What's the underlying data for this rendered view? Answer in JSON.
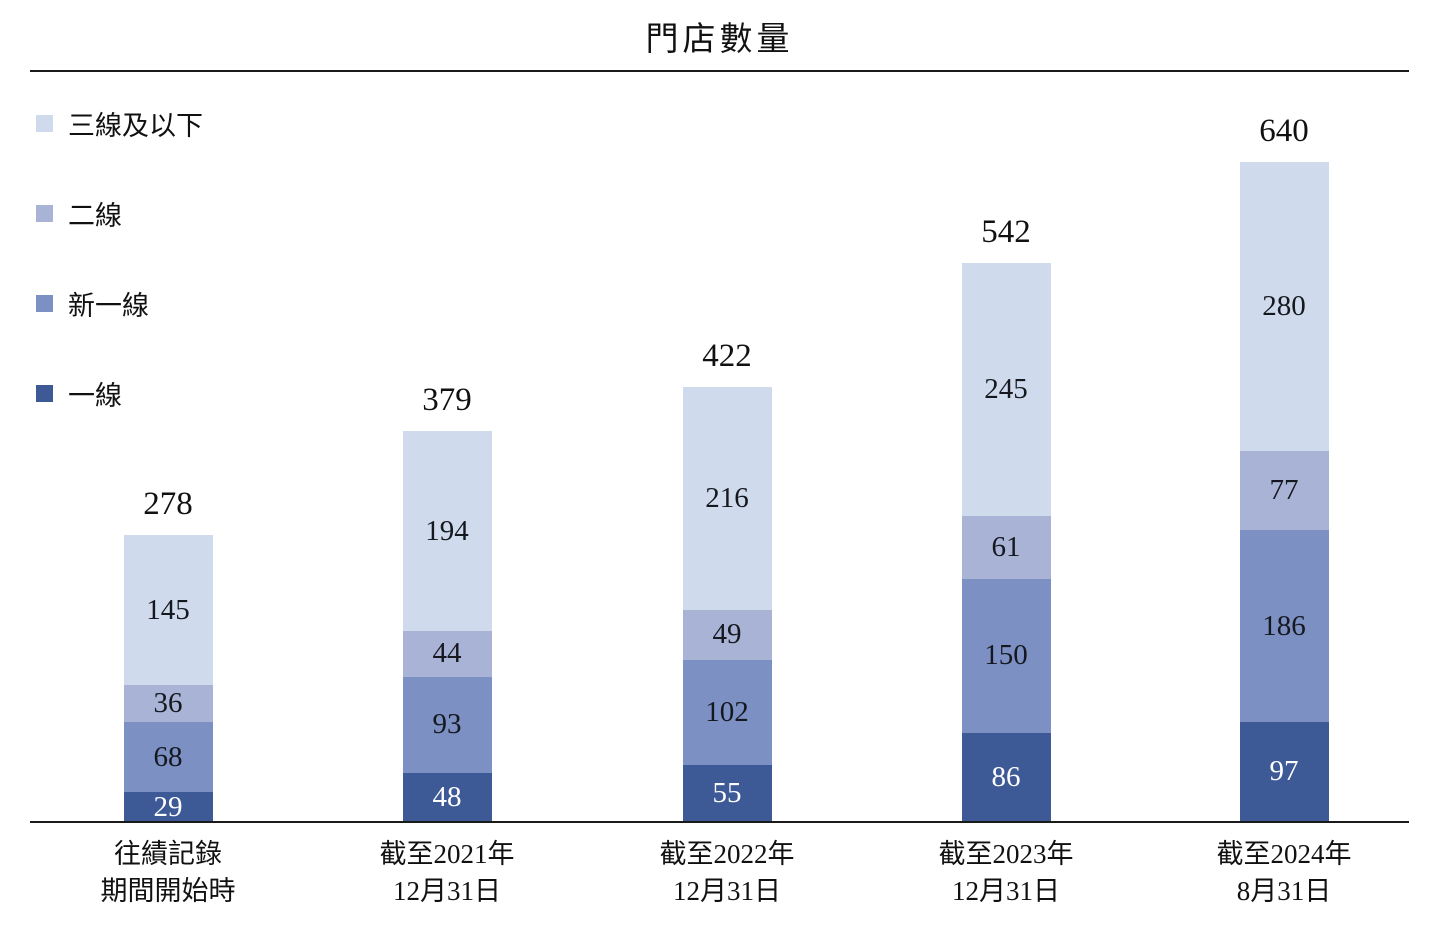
{
  "chart_data": {
    "type": "bar",
    "subtype": "stacked-vertical",
    "title": "門店數量",
    "xlabel": "",
    "ylabel": "",
    "grid": false,
    "legend_position": "top-left",
    "legend": [
      {
        "label": "三線及以下",
        "color": "#cfdbec"
      },
      {
        "label": "二線",
        "color": "#a9b3d6"
      },
      {
        "label": "新一線",
        "color": "#7c90c4"
      },
      {
        "label": "一線",
        "color": "#3d5a97"
      }
    ],
    "categories": [
      [
        "往績記錄",
        "期間開始時"
      ],
      [
        "截至2021年",
        "12月31日"
      ],
      [
        "截至2022年",
        "12月31日"
      ],
      [
        "截至2023年",
        "12月31日"
      ],
      [
        "截至2024年",
        "8月31日"
      ]
    ],
    "series": [
      {
        "name": "一線",
        "color": "#3d5a97",
        "text_color": "#ffffff",
        "values": [
          29,
          48,
          55,
          86,
          97
        ]
      },
      {
        "name": "新一線",
        "color": "#7c90c4",
        "text_color": "#15181f",
        "values": [
          68,
          93,
          102,
          150,
          186
        ]
      },
      {
        "name": "二線",
        "color": "#a9b3d6",
        "text_color": "#15181f",
        "values": [
          36,
          44,
          49,
          61,
          77
        ]
      },
      {
        "name": "三線及以下",
        "color": "#cfdbec",
        "text_color": "#15181f",
        "values": [
          145,
          194,
          216,
          245,
          280
        ]
      }
    ],
    "totals": [
      278,
      379,
      422,
      542,
      640
    ],
    "ylim": [
      0,
      640
    ]
  }
}
